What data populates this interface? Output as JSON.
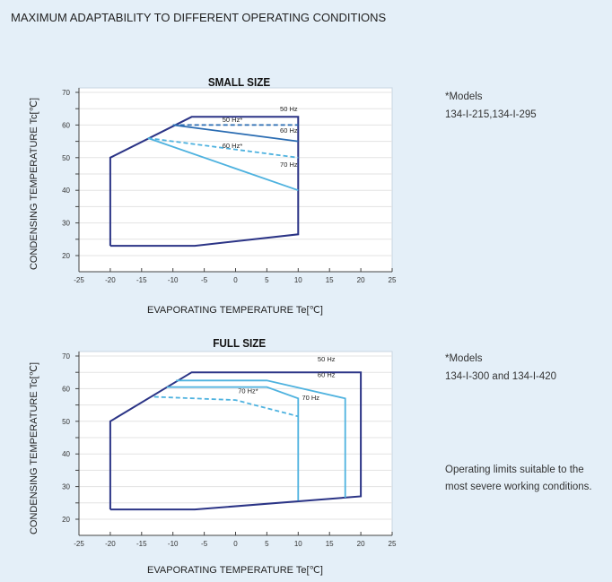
{
  "page_title": "MAXIMUM ADAPTABILITY TO DIFFERENT OPERATING CONDITIONS",
  "colors": {
    "dark": "#2b3486",
    "mid": "#2a6cb2",
    "light": "#4eb2df",
    "grid": "#e3e3e3",
    "background": "#e4eff8"
  },
  "chart_data": [
    {
      "type": "line",
      "title": "SMALL SIZE",
      "xlabel": "EVAPORATING TEMPERATURE  Te[℃]",
      "ylabel": "CONDENSING TEMPERATURE Tc[℃]",
      "xlim": [
        -25,
        25
      ],
      "ylim": [
        15,
        71
      ],
      "xticks": [
        "-25",
        "-20",
        "-15",
        "-10",
        "-5",
        "0",
        "5",
        "10",
        "15",
        "20",
        "25"
      ],
      "yticks": [
        "20",
        "30",
        "40",
        "50",
        "60",
        "70"
      ],
      "grid": true,
      "series": [
        {
          "name": "50 Hz",
          "style": "solid",
          "color": "dark",
          "points": [
            [
              -20,
              23
            ],
            [
              -6.5,
              23
            ],
            [
              10,
              26.5
            ],
            [
              10,
              62.5
            ],
            [
              -7,
              62.5
            ],
            [
              -20,
              50
            ],
            [
              -20,
              23
            ]
          ]
        },
        {
          "name": "50 Hz*",
          "style": "dashed",
          "color": "mid",
          "points": [
            [
              -10,
              60
            ],
            [
              10,
              60
            ]
          ]
        },
        {
          "name": "60 Hz",
          "style": "solid",
          "color": "mid",
          "points": [
            [
              -10,
              60
            ],
            [
              10,
              55
            ]
          ]
        },
        {
          "name": "60 Hz*",
          "style": "dashed",
          "color": "light",
          "points": [
            [
              -14,
              56
            ],
            [
              10,
              50
            ]
          ]
        },
        {
          "name": "70 Hz",
          "style": "solid",
          "color": "light",
          "points": [
            [
              -14,
              56
            ],
            [
              10,
              40
            ]
          ]
        }
      ]
    },
    {
      "type": "line",
      "title": "FULL SIZE",
      "xlabel": "EVAPORATING TEMPERATURE  Te[℃]",
      "ylabel": "CONDENSING TEMPERATURE Tc[℃]",
      "xlim": [
        -25,
        25
      ],
      "ylim": [
        15,
        71
      ],
      "xticks": [
        "-25",
        "-20",
        "-15",
        "-10",
        "-5",
        "0",
        "5",
        "10",
        "15",
        "20",
        "25"
      ],
      "yticks": [
        "20",
        "30",
        "40",
        "50",
        "60",
        "70"
      ],
      "grid": true,
      "series": [
        {
          "name": "50 Hz",
          "style": "solid",
          "color": "dark",
          "points": [
            [
              -20,
              23
            ],
            [
              -6.5,
              23
            ],
            [
              20,
              27
            ],
            [
              20,
              65
            ],
            [
              -7,
              65
            ],
            [
              -20,
              50
            ],
            [
              -20,
              23
            ]
          ]
        },
        {
          "name": "60 Hz",
          "style": "solid",
          "color": "light",
          "points": [
            [
              -9.5,
              62.5
            ],
            [
              5,
              62.5
            ],
            [
              17.5,
              57
            ],
            [
              17.5,
              26.6
            ]
          ]
        },
        {
          "name": "70 Hz",
          "style": "solid",
          "color": "light",
          "points": [
            [
              -11,
              60.5
            ],
            [
              5,
              60.5
            ],
            [
              10,
              57
            ],
            [
              10,
              25.7
            ]
          ]
        },
        {
          "name": "70 Hz*",
          "style": "dashed",
          "color": "light",
          "points": [
            [
              -13,
              57.5
            ],
            [
              0,
              56.5
            ],
            [
              10,
              51.5
            ]
          ]
        }
      ]
    }
  ],
  "side_notes": [
    {
      "heading": "*Models",
      "models": "134-I-215,134-I-295"
    },
    {
      "heading": "*Models",
      "models": "134-I-300 and 134-I-420",
      "note_line1": "Operating limits suitable to the",
      "note_line2": "most severe working conditions."
    }
  ]
}
